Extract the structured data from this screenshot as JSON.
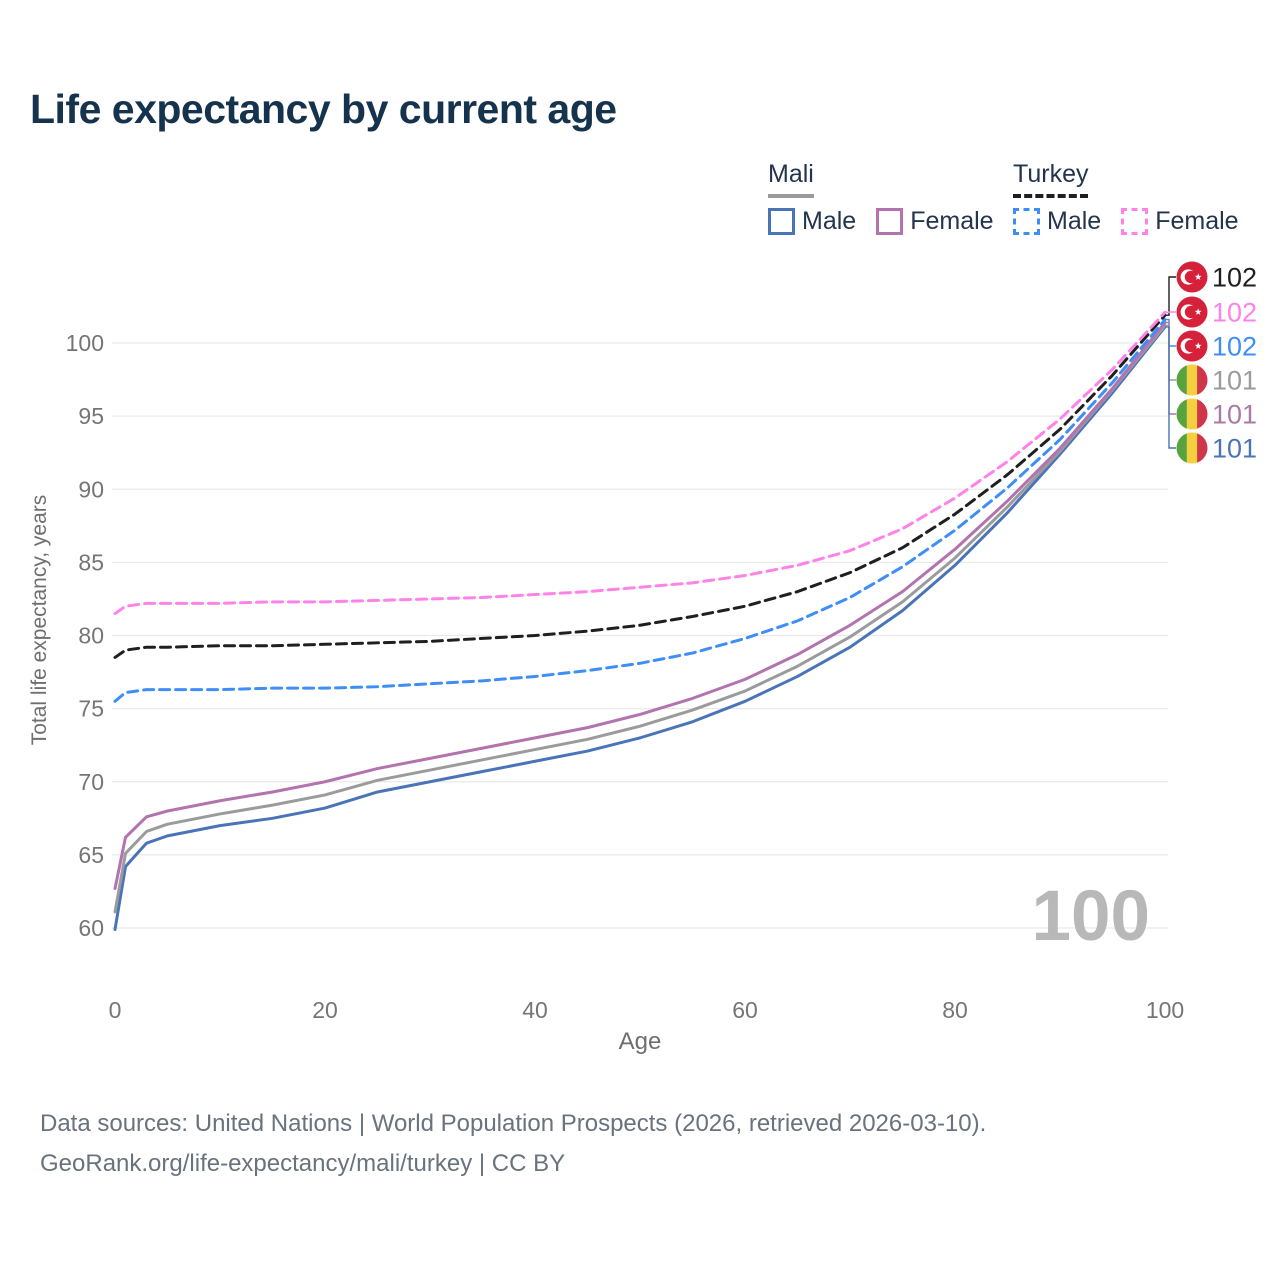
{
  "title": "Life expectancy by current age",
  "watermark": "100",
  "footer": {
    "line1": "Data sources: United Nations | World Population Prospects (2026, retrieved 2026-03-10).",
    "line2": "GeoRank.org/life-expectancy/mali/turkey | CC BY"
  },
  "legend": {
    "groups": [
      {
        "key": "mali",
        "label": "Mali",
        "line_style": "solid",
        "underline_color": "#9b9b9b",
        "items": [
          {
            "label": "Male",
            "color": "#4a74b8"
          },
          {
            "label": "Female",
            "color": "#b273ae"
          }
        ]
      },
      {
        "key": "turkey",
        "label": "Turkey",
        "line_style": "dashed",
        "underline_color": "#1f1f1f",
        "items": [
          {
            "label": "Male",
            "color": "#3e8ef7"
          },
          {
            "label": "Female",
            "color": "#ff82e9"
          }
        ]
      }
    ]
  },
  "colors": {
    "title": "#16334e",
    "tick": "#757575",
    "axis_title": "#6f6f6f",
    "grid": "#eaeaea",
    "footer": "#68737e",
    "watermark": "#b8b8b8",
    "background": "#ffffff",
    "turkey_flag_red": "#d6213a",
    "mali_flag_green": "#57a33c",
    "mali_flag_yellow": "#f6cf3e",
    "mali_flag_red": "#d0364a"
  },
  "chart_data": {
    "type": "line",
    "title": "Life expectancy by current age",
    "xlabel": "Age",
    "ylabel": "Total life expectancy, years",
    "xlim": [
      0,
      100
    ],
    "ylim": [
      58,
      103
    ],
    "grid": "horizontal",
    "legend_position": "top-right",
    "x_ticks": [
      0,
      20,
      40,
      60,
      80,
      100
    ],
    "y_ticks": [
      60,
      65,
      70,
      75,
      80,
      85,
      90,
      95,
      100
    ],
    "x": [
      0,
      1,
      3,
      5,
      10,
      15,
      20,
      25,
      30,
      35,
      40,
      45,
      50,
      55,
      60,
      65,
      70,
      75,
      80,
      85,
      90,
      95,
      100
    ],
    "series": [
      {
        "key": "mali_male",
        "name": "Mali — Male",
        "color": "#4a74b8",
        "dash": false,
        "values": [
          59.9,
          64.2,
          65.8,
          66.3,
          67.0,
          67.5,
          68.2,
          69.3,
          70.0,
          70.7,
          71.4,
          72.1,
          73.0,
          74.1,
          75.5,
          77.2,
          79.2,
          81.7,
          84.8,
          88.4,
          92.4,
          96.6,
          101.1
        ]
      },
      {
        "key": "mali_both",
        "name": "Mali — Both sexes",
        "color": "#9b9b9b",
        "dash": false,
        "values": [
          61.1,
          65.1,
          66.6,
          67.1,
          67.8,
          68.4,
          69.1,
          70.1,
          70.8,
          71.5,
          72.2,
          72.9,
          73.8,
          74.9,
          76.2,
          77.9,
          79.9,
          82.3,
          85.3,
          88.8,
          92.6,
          96.8,
          101.2
        ]
      },
      {
        "key": "mali_female",
        "name": "Mali — Female",
        "color": "#b273ae",
        "dash": false,
        "values": [
          62.7,
          66.2,
          67.6,
          68.0,
          68.7,
          69.3,
          70.0,
          70.9,
          71.6,
          72.3,
          73.0,
          73.7,
          74.6,
          75.7,
          77.0,
          78.7,
          80.7,
          83.0,
          85.9,
          89.2,
          92.8,
          96.9,
          101.4
        ]
      },
      {
        "key": "turkey_male",
        "name": "Turkey — Male",
        "color": "#3e8ef7",
        "dash": true,
        "values": [
          75.5,
          76.1,
          76.3,
          76.3,
          76.3,
          76.4,
          76.4,
          76.5,
          76.7,
          76.9,
          77.2,
          77.6,
          78.1,
          78.8,
          79.8,
          81.0,
          82.6,
          84.7,
          87.2,
          90.1,
          93.4,
          97.3,
          101.6
        ]
      },
      {
        "key": "turkey_both",
        "name": "Turkey — Both sexes",
        "color": "#1f1f1f",
        "dash": true,
        "values": [
          78.5,
          79.0,
          79.2,
          79.2,
          79.3,
          79.3,
          79.4,
          79.5,
          79.6,
          79.8,
          80.0,
          80.3,
          80.7,
          81.3,
          82.0,
          83.0,
          84.3,
          86.0,
          88.3,
          91.0,
          94.1,
          97.8,
          101.9
        ]
      },
      {
        "key": "turkey_female",
        "name": "Turkey — Female",
        "color": "#ff82e9",
        "dash": true,
        "values": [
          81.5,
          82.0,
          82.2,
          82.2,
          82.2,
          82.3,
          82.3,
          82.4,
          82.5,
          82.6,
          82.8,
          83.0,
          83.3,
          83.6,
          84.1,
          84.8,
          85.8,
          87.3,
          89.4,
          91.9,
          94.8,
          98.2,
          102.1
        ]
      }
    ],
    "end_labels": [
      {
        "series": "turkey_both",
        "flag": "turkey",
        "label": "102",
        "color": "#1f1f1f"
      },
      {
        "series": "turkey_female",
        "flag": "turkey",
        "label": "102",
        "color": "#ff82e9"
      },
      {
        "series": "turkey_male",
        "flag": "turkey",
        "label": "102",
        "color": "#3e8ef7"
      },
      {
        "series": "mali_both",
        "flag": "mali",
        "label": "101",
        "color": "#9b9b9b"
      },
      {
        "series": "mali_female",
        "flag": "mali",
        "label": "101",
        "color": "#a97aa6"
      },
      {
        "series": "mali_male",
        "flag": "mali",
        "label": "101",
        "color": "#4a74b8"
      }
    ]
  }
}
